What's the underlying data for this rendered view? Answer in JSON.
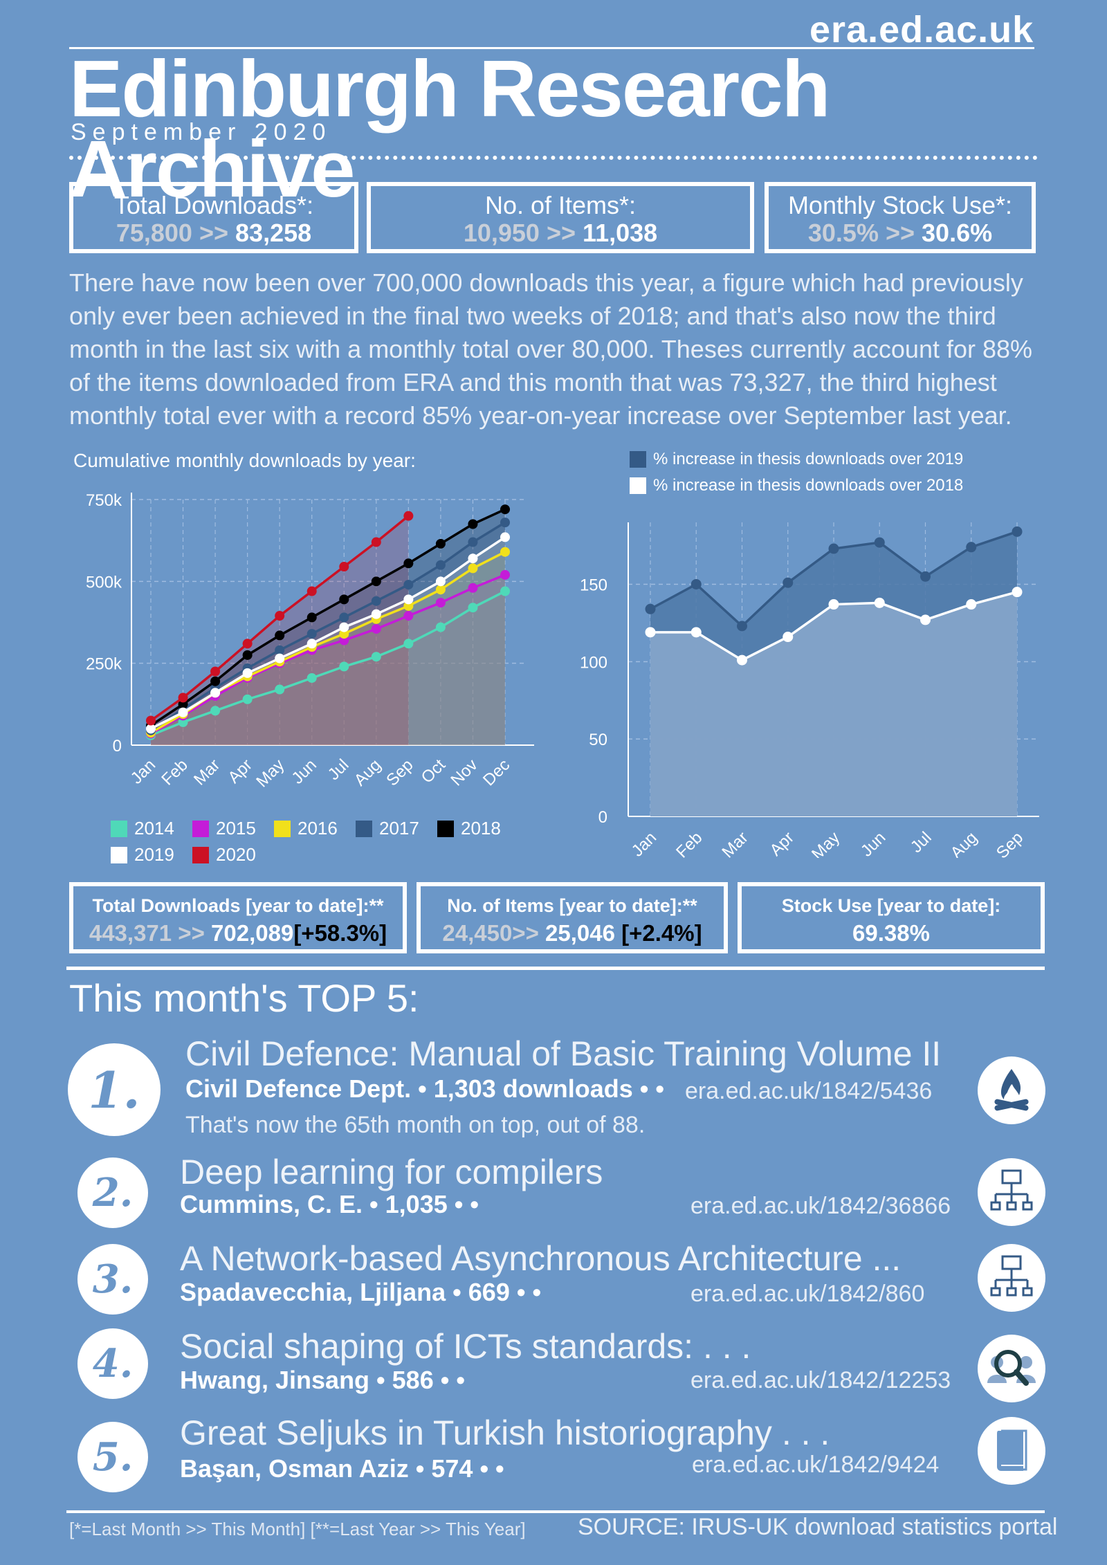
{
  "header": {
    "url": "era.ed.ac.uk",
    "title": "Edinburgh Research Archive",
    "month": "September 2020"
  },
  "stats_month": [
    {
      "label": "Total Downloads*:",
      "old": "75,800 >>",
      "new": "83,258"
    },
    {
      "label": "No. of Items*:",
      "old": "10,950 >>",
      "new": "11,038"
    },
    {
      "label": "Monthly Stock Use*:",
      "old": "30.5% >>",
      "new": "30.6%"
    }
  ],
  "paragraph": "There have now been over 700,000 downloads this year, a figure which had previously only ever been achieved in the final two weeks of 2018; and that's also now the third month in the last six with a monthly total over 80,000. Theses currently account for 88% of the items downloaded from ERA and this month that was 73,327, the third highest monthly total ever with a record 85% year-on-year increase over September last year.",
  "chart_left": {
    "type": "line",
    "title": "Cumulative monthly downloads by year:",
    "x": [
      "Jan",
      "Feb",
      "Mar",
      "Apr",
      "May",
      "Jun",
      "Jul",
      "Aug",
      "Sep",
      "Oct",
      "Nov",
      "Dec"
    ],
    "ylim": [
      0,
      750000
    ],
    "yticks": [
      {
        "v": 0,
        "label": "0"
      },
      {
        "v": 250000,
        "label": "250k"
      },
      {
        "v": 500000,
        "label": "500k"
      },
      {
        "v": 750000,
        "label": "750k"
      }
    ],
    "series": [
      {
        "name": "2014",
        "color": "#4fd9b8",
        "values": [
          30000,
          70000,
          105000,
          140000,
          170000,
          205000,
          240000,
          270000,
          310000,
          360000,
          420000,
          470000
        ]
      },
      {
        "name": "2015",
        "color": "#c41cd8",
        "values": [
          35000,
          90000,
          150000,
          205000,
          250000,
          290000,
          320000,
          355000,
          395000,
          435000,
          480000,
          520000
        ]
      },
      {
        "name": "2016",
        "color": "#f1e01b",
        "values": [
          38000,
          95000,
          160000,
          210000,
          255000,
          300000,
          340000,
          385000,
          425000,
          475000,
          540000,
          590000
        ]
      },
      {
        "name": "2017",
        "color": "#345a86",
        "values": [
          45000,
          110000,
          175000,
          235000,
          290000,
          340000,
          390000,
          440000,
          490000,
          550000,
          620000,
          680000
        ]
      },
      {
        "name": "2018",
        "color": "#000000",
        "values": [
          60000,
          125000,
          195000,
          275000,
          335000,
          390000,
          445000,
          500000,
          555000,
          615000,
          675000,
          720000
        ]
      },
      {
        "name": "2019",
        "color": "#ffffff",
        "values": [
          50000,
          100000,
          160000,
          220000,
          265000,
          310000,
          360000,
          400000,
          445000,
          500000,
          570000,
          635000
        ]
      },
      {
        "name": "2020",
        "color": "#cc1124",
        "values": [
          75000,
          145000,
          225000,
          310000,
          395000,
          470000,
          545000,
          620000,
          700000
        ]
      }
    ],
    "legend_order": [
      "2014",
      "2015",
      "2016",
      "2017",
      "2018",
      "2019",
      "2020"
    ]
  },
  "chart_right": {
    "type": "area",
    "x": [
      "Jan",
      "Feb",
      "Mar",
      "Apr",
      "May",
      "Jun",
      "Jul",
      "Aug",
      "Sep"
    ],
    "ylim": [
      0,
      190
    ],
    "yticks": [
      0,
      50,
      100,
      150
    ],
    "series": [
      {
        "name": "% increase in thesis downloads over 2019",
        "color": "#345a86",
        "values": [
          134,
          150,
          123,
          151,
          173,
          177,
          155,
          174,
          184
        ]
      },
      {
        "name": "% increase in thesis downloads over 2018",
        "color": "#ffffff",
        "values": [
          119,
          119,
          101,
          116,
          137,
          138,
          127,
          137,
          145
        ]
      }
    ]
  },
  "stats_year": [
    {
      "label": "Total Downloads [year to date]:**",
      "old": "443,371 >>",
      "new": "702,089",
      "pct": "[+58.3%]"
    },
    {
      "label": "No. of Items [year to date]:**",
      "old": "24,450>>",
      "new": "25,046",
      "pct": "[+2.4%]"
    },
    {
      "label": "Stock Use [year to date]:",
      "old": "",
      "new": "69.38%",
      "pct": ""
    }
  ],
  "top5_heading": "This month's TOP 5:",
  "top5": [
    {
      "rank": "1.",
      "title": "Civil Defence: Manual of Basic Training Volume II",
      "author": "Civil Defence Dept. • 1,303 downloads • •",
      "link": "era.ed.ac.uk/1842/5436",
      "note": "That's now the 65th month on top, out of 88.",
      "icon": "campfire-icon"
    },
    {
      "rank": "2.",
      "title": "Deep learning for compilers",
      "author": "Cummins, C. E. • 1,035 • •",
      "link": "era.ed.ac.uk/1842/36866",
      "icon": "network-icon"
    },
    {
      "rank": "3.",
      "title": "A Network-based Asynchronous Architecture ...",
      "author": "Spadavecchia, Ljiljana • 669 • •",
      "link": "era.ed.ac.uk/1842/860",
      "icon": "network-icon"
    },
    {
      "rank": "4.",
      "title": "Social shaping of ICTs standards: . . .",
      "author": "Hwang, Jinsang • 586 • •",
      "link": "era.ed.ac.uk/1842/12253",
      "icon": "people-search-icon"
    },
    {
      "rank": "5.",
      "title": "Great Seljuks in Turkish historiography . . .",
      "author": "Başan, Osman Aziz • 574 • •",
      "link": "era.ed.ac.uk/1842/9424",
      "icon": "book-icon"
    }
  ],
  "footer": {
    "note": "[*=Last Month >> This Month] [**=Last Year >> This Year]",
    "source": "SOURCE: IRUS-UK download statistics portal"
  }
}
